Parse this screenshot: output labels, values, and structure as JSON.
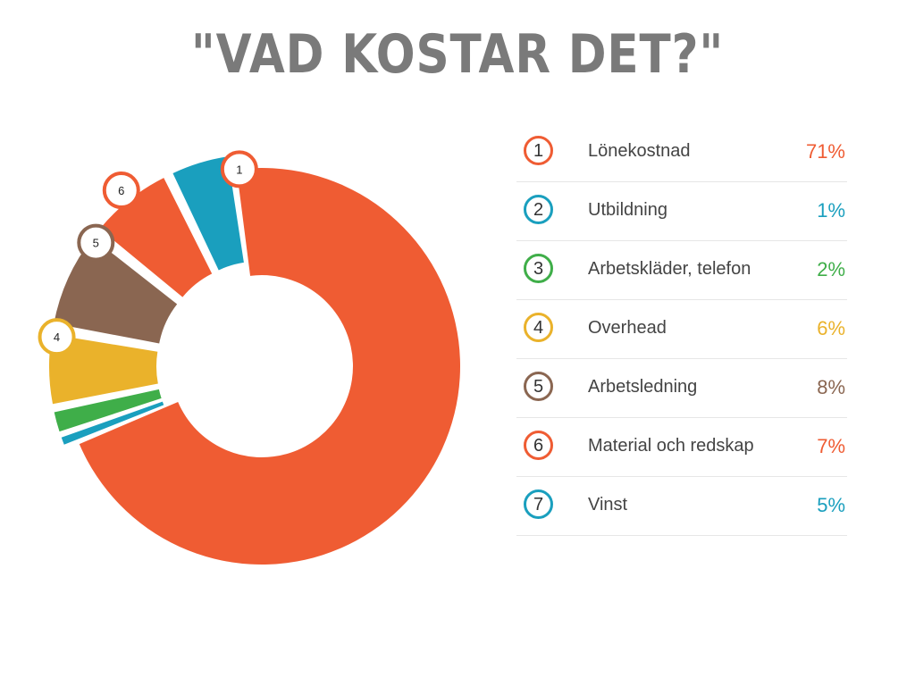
{
  "title": "\"VAD KOSTAR DET?\"",
  "chart_data": {
    "type": "pie",
    "variant": "donut",
    "slices": [
      {
        "marker": "1",
        "label": "Lönekostnad",
        "value_label": "71%",
        "value": 71,
        "color": "#EF5C33"
      },
      {
        "marker": "2",
        "label": "Utbildning",
        "value_label": "1%",
        "value": 1,
        "color": "#1A9FBE"
      },
      {
        "marker": "3",
        "label": "Arbetskläder, telefon",
        "value_label": "2%",
        "value": 2,
        "color": "#3FAE49"
      },
      {
        "marker": "4",
        "label": "Overhead",
        "value_label": "6%",
        "value": 6,
        "color": "#EAB22B"
      },
      {
        "marker": "5",
        "label": "Arbetsledning",
        "value_label": "8%",
        "value": 8,
        "color": "#8A6651"
      },
      {
        "marker": "6",
        "label": "Material och redskap",
        "value_label": "7%",
        "value": 7,
        "color": "#EF5C33"
      },
      {
        "marker": "7",
        "label": "Vinst",
        "value_label": "5%",
        "value": 5,
        "color": "#1A9FBE"
      }
    ],
    "chart_markers_shown": [
      "1",
      "4",
      "5",
      "6"
    ],
    "legend_placement": "right"
  }
}
